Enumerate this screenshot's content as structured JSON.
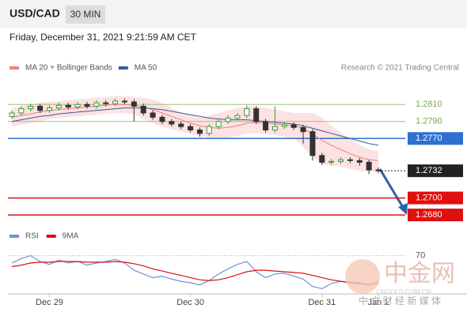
{
  "chart_data": {
    "type": "candlestick",
    "symbol": "USD/CAD",
    "timeframe": "30 MIN",
    "date": "Friday, December 31, 2021 9:21:59 AM CET",
    "credit": "Research © 2021 Trading Central",
    "watermark": {
      "logo": "中金网",
      "site": "CNGOLD.COM.CN",
      "slogan": "中 文 财 经 新 媒 体"
    },
    "categories": [
      null,
      null,
      null,
      null,
      "Dec 29",
      null,
      null,
      null,
      null,
      null,
      null,
      null,
      null,
      null,
      null,
      null,
      null,
      null,
      null,
      "Dec 30",
      null,
      null,
      null,
      null,
      null,
      null,
      null,
      null,
      null,
      null,
      null,
      null,
      null,
      "Dec 31",
      null,
      null,
      null,
      null,
      null,
      "Jan 1"
    ],
    "open": [
      1.2796,
      1.28,
      1.2805,
      1.2808,
      1.2803,
      1.2806,
      1.2809,
      1.2807,
      1.281,
      1.2808,
      1.2812,
      1.2811,
      1.2814,
      1.2813,
      1.2808,
      1.28,
      1.2795,
      1.279,
      1.2787,
      1.2784,
      1.278,
      1.2776,
      1.2784,
      1.279,
      1.2794,
      1.2797,
      1.2805,
      1.279,
      1.278,
      1.2784,
      1.2786,
      1.2783,
      1.2778,
      1.275,
      1.2742,
      1.2743,
      1.2745,
      1.2744,
      1.2742,
      1.2733
    ],
    "high": [
      1.2803,
      1.2808,
      1.2811,
      1.2811,
      1.2809,
      1.2812,
      1.2812,
      1.2813,
      1.2813,
      1.2815,
      1.2815,
      1.2817,
      1.2817,
      1.2816,
      1.2811,
      1.2803,
      1.2798,
      1.2793,
      1.279,
      1.2787,
      1.2783,
      1.2787,
      1.2793,
      1.2797,
      1.28,
      1.2809,
      1.2808,
      1.2793,
      1.2808,
      1.2789,
      1.2789,
      1.2786,
      1.2781,
      1.2753,
      1.2746,
      1.2748,
      1.2748,
      1.2747,
      1.2745,
      1.2736
    ],
    "low": [
      1.2793,
      1.2797,
      1.2802,
      1.28,
      1.28,
      1.2803,
      1.2804,
      1.2804,
      1.2805,
      1.2805,
      1.2808,
      1.2808,
      1.281,
      1.279,
      1.2797,
      1.2792,
      1.2787,
      1.2784,
      1.2781,
      1.2777,
      1.2772,
      1.2773,
      1.2781,
      1.2787,
      1.2791,
      1.2794,
      1.2787,
      1.2777,
      1.2777,
      1.2781,
      1.278,
      1.2764,
      1.2744,
      1.2739,
      1.2739,
      1.274,
      1.2741,
      1.2738,
      1.2728,
      1.2729
    ],
    "close": [
      1.28,
      1.2805,
      1.2808,
      1.2803,
      1.2806,
      1.2809,
      1.2807,
      1.281,
      1.2808,
      1.2812,
      1.2811,
      1.2814,
      1.2813,
      1.2808,
      1.28,
      1.2795,
      1.279,
      1.2787,
      1.2784,
      1.278,
      1.2776,
      1.2784,
      1.279,
      1.2794,
      1.2797,
      1.2805,
      1.279,
      1.278,
      1.2784,
      1.2786,
      1.2783,
      1.2778,
      1.275,
      1.2742,
      1.2743,
      1.2745,
      1.2744,
      1.2742,
      1.2733,
      1.2732
    ],
    "up_color": "#3a9a3a",
    "down_color": "#333333",
    "series": [
      {
        "name": "MA 20 + Bollinger Bands",
        "color": "#f08080",
        "values": [
          1.2795,
          1.2797,
          1.2799,
          1.2801,
          1.2803,
          1.2804,
          1.2805,
          1.2806,
          1.2807,
          1.2808,
          1.2809,
          1.281,
          1.281,
          1.2809,
          1.2807,
          1.2804,
          1.28,
          1.2796,
          1.2792,
          1.2788,
          1.2785,
          1.2783,
          1.2782,
          1.2783,
          1.2785,
          1.2788,
          1.2789,
          1.2788,
          1.2787,
          1.2786,
          1.2785,
          1.2782,
          1.2775,
          1.2768,
          1.2762,
          1.2757,
          1.2752,
          1.2748,
          1.2745,
          1.2744
        ],
        "upper": [
          1.2806,
          1.2808,
          1.281,
          1.2812,
          1.2813,
          1.2814,
          1.2815,
          1.2816,
          1.2817,
          1.2818,
          1.2819,
          1.282,
          1.282,
          1.2819,
          1.2818,
          1.2816,
          1.2812,
          1.2806,
          1.28,
          1.2797,
          1.2795,
          1.2797,
          1.28,
          1.2803,
          1.2806,
          1.2808,
          1.2808,
          1.2806,
          1.2804,
          1.2802,
          1.28,
          1.28,
          1.28,
          1.2795,
          1.2785,
          1.2777,
          1.277,
          1.2762,
          1.2757,
          1.2755
        ],
        "lower": [
          1.2784,
          1.2786,
          1.2788,
          1.279,
          1.2793,
          1.2794,
          1.2795,
          1.2796,
          1.2797,
          1.2798,
          1.2799,
          1.28,
          1.28,
          1.2798,
          1.2793,
          1.2788,
          1.2784,
          1.2781,
          1.2778,
          1.2775,
          1.2773,
          1.2771,
          1.277,
          1.2771,
          1.2773,
          1.2776,
          1.2776,
          1.2775,
          1.2774,
          1.2772,
          1.277,
          1.276,
          1.2748,
          1.274,
          1.2738,
          1.2737,
          1.2734,
          1.2732,
          1.2731,
          1.2731
        ]
      },
      {
        "name": "MA 50",
        "color": "#3a5a9a",
        "values": [
          1.279,
          1.2792,
          1.2794,
          1.2796,
          1.2797,
          1.2799,
          1.28,
          1.2801,
          1.2802,
          1.2803,
          1.2804,
          1.2805,
          1.2806,
          1.2806,
          1.2806,
          1.2805,
          1.2804,
          1.2802,
          1.28,
          1.2798,
          1.2796,
          1.2794,
          1.2793,
          1.2792,
          1.2792,
          1.2792,
          1.2791,
          1.279,
          1.2789,
          1.2788,
          1.2787,
          1.2785,
          1.2782,
          1.2779,
          1.2776,
          1.2773,
          1.277,
          1.2767,
          1.2764,
          1.2762
        ]
      }
    ],
    "levels": [
      {
        "value": 1.281,
        "label": "1.2810",
        "color": "#9cc47a",
        "style": "text"
      },
      {
        "value": 1.279,
        "label": "1.2790",
        "color": "#9cc47a",
        "style": "text"
      },
      {
        "value": 1.277,
        "label": "1.2770",
        "color": "#2f6fd0",
        "style": "box"
      },
      {
        "value": 1.2732,
        "label": "1.2732",
        "color": "#222222",
        "style": "dotted"
      },
      {
        "value": 1.27,
        "label": "1.2700",
        "color": "#e01010",
        "style": "box"
      },
      {
        "value": 1.268,
        "label": "1.2680",
        "color": "#e01010",
        "style": "box"
      }
    ],
    "ylim": [
      1.2668,
      1.284
    ],
    "rsi": {
      "ylim": [
        20,
        90
      ],
      "yticks": [
        70
      ],
      "series": [
        {
          "name": "RSI",
          "color": "#6f8fdc",
          "values": [
            60,
            66,
            70,
            62,
            58,
            64,
            60,
            62,
            57,
            60,
            62,
            65,
            60,
            50,
            45,
            40,
            42,
            38,
            35,
            33,
            30,
            36,
            45,
            52,
            58,
            62,
            48,
            40,
            45,
            46,
            42,
            38,
            28,
            25,
            32,
            35,
            34,
            33,
            28,
            36
          ]
        },
        {
          "name": "9MA",
          "color": "#d81010",
          "values": [
            55,
            57,
            60,
            61,
            61,
            62,
            62,
            62,
            61,
            61,
            61,
            62,
            61,
            59,
            56,
            52,
            49,
            46,
            43,
            40,
            37,
            36,
            37,
            40,
            44,
            48,
            50,
            50,
            49,
            48,
            47,
            46,
            43,
            40,
            37,
            35,
            33,
            32,
            31,
            32
          ]
        }
      ]
    }
  }
}
